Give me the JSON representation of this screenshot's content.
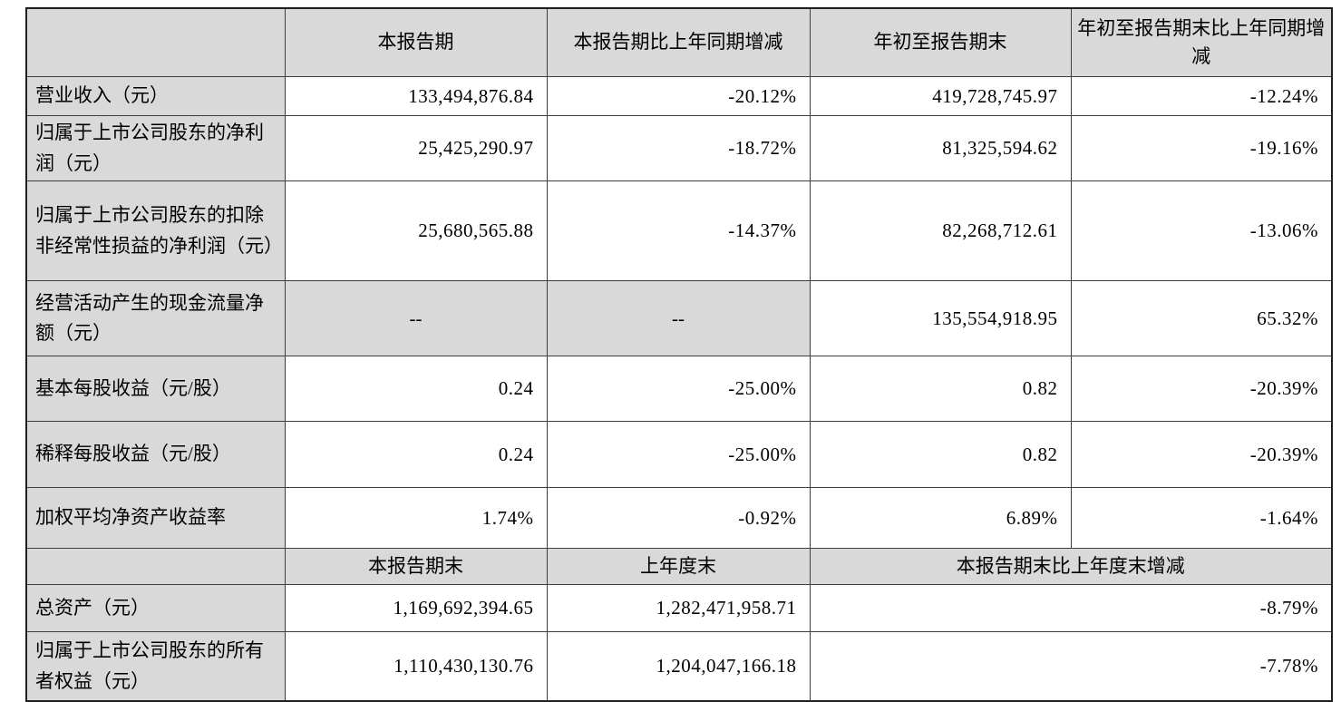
{
  "table": {
    "header1": [
      "",
      "本报告期",
      "本报告期比上年同期增减",
      "年初至报告期末",
      "年初至报告期末比上年同期增减"
    ],
    "rows": [
      {
        "label": "营业收入（元）",
        "cells": [
          "133,494,876.84",
          "-20.12%",
          "419,728,745.97",
          "-12.24%"
        ]
      },
      {
        "label": "归属于上市公司股东的净利润（元）",
        "cells": [
          "25,425,290.97",
          "-18.72%",
          "81,325,594.62",
          "-19.16%"
        ]
      },
      {
        "label": "归属于上市公司股东的扣除非经常性损益的净利润（元）",
        "cells": [
          "25,680,565.88",
          "-14.37%",
          "82,268,712.61",
          "-13.06%"
        ]
      },
      {
        "label": "经营活动产生的现金流量净额（元）",
        "cells": [
          "--",
          "--",
          "135,554,918.95",
          "65.32%"
        ]
      },
      {
        "label": "基本每股收益（元/股）",
        "cells": [
          "0.24",
          "-25.00%",
          "0.82",
          "-20.39%"
        ]
      },
      {
        "label": "稀释每股收益（元/股）",
        "cells": [
          "0.24",
          "-25.00%",
          "0.82",
          "-20.39%"
        ]
      },
      {
        "label": "加权平均净资产收益率",
        "cells": [
          "1.74%",
          "-0.92%",
          "6.89%",
          "-1.64%"
        ]
      }
    ],
    "header2": [
      "",
      "本报告期末",
      "上年度末",
      "本报告期末比上年度末增减"
    ],
    "rows2": [
      {
        "label": "总资产（元）",
        "cells": [
          "1,169,692,394.65",
          "1,282,471,958.71",
          "-8.79%"
        ]
      },
      {
        "label": "归属于上市公司股东的所有者权益（元）",
        "cells": [
          "1,110,430,130.76",
          "1,204,047,166.18",
          "-7.78%"
        ]
      }
    ]
  },
  "colors": {
    "header_bg": "#d9d9d9",
    "label_bg": "#d9d9d9",
    "dash_bg": "#d9d9d9",
    "inner_border": "#3d3d3d",
    "outer_border": "#1f1f1f",
    "text": "#000000",
    "page_bg": "#ffffff"
  }
}
